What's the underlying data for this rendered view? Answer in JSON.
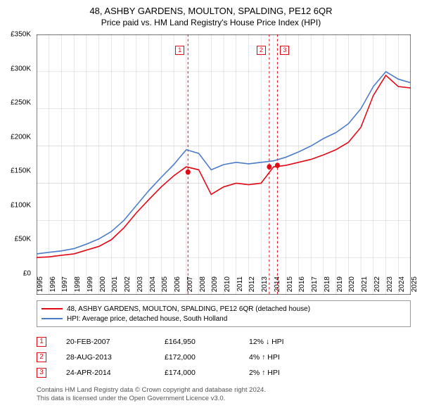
{
  "title": {
    "main": "48, ASHBY GARDENS, MOULTON, SPALDING, PE12 6QR",
    "sub": "Price paid vs. HM Land Registry's House Price Index (HPI)"
  },
  "chart": {
    "type": "line",
    "background_color": "#ffffff",
    "grid_color": "#cccccc",
    "axis_color": "#000000",
    "ylim": [
      0,
      350000
    ],
    "ytick_step": 50000,
    "ytick_labels": [
      "£0",
      "£50K",
      "£100K",
      "£150K",
      "£200K",
      "£250K",
      "£300K",
      "£350K"
    ],
    "x_years": [
      1995,
      1996,
      1997,
      1998,
      1999,
      2000,
      2001,
      2002,
      2003,
      2004,
      2005,
      2006,
      2007,
      2008,
      2009,
      2010,
      2011,
      2012,
      2013,
      2014,
      2015,
      2016,
      2017,
      2018,
      2019,
      2020,
      2021,
      2022,
      2023,
      2024,
      2025
    ],
    "series": [
      {
        "name": "property",
        "color": "#e30613",
        "width": 1.5,
        "values": [
          50,
          51,
          53,
          55,
          60,
          65,
          74,
          90,
          110,
          128,
          145,
          160,
          172,
          168,
          135,
          145,
          150,
          148,
          150,
          172,
          174,
          178,
          182,
          188,
          195,
          205,
          225,
          268,
          295,
          280,
          278
        ],
        "marker_points": [
          {
            "year": 2007.14,
            "value": 164.95,
            "index": 1
          },
          {
            "year": 2013.66,
            "value": 172.0,
            "index": 2
          },
          {
            "year": 2014.31,
            "value": 174.0,
            "index": 3
          }
        ]
      },
      {
        "name": "hpi",
        "color": "#4a7bc8",
        "width": 1.5,
        "values": [
          55,
          57,
          59,
          62,
          68,
          75,
          85,
          100,
          120,
          140,
          158,
          175,
          195,
          190,
          168,
          175,
          178,
          176,
          178,
          180,
          185,
          192,
          200,
          210,
          218,
          230,
          250,
          280,
          300,
          290,
          285
        ]
      }
    ],
    "event_lines": [
      {
        "year": 2007.14,
        "label": "1",
        "label_x_offset": -18
      },
      {
        "year": 2013.66,
        "label": "2",
        "label_x_offset": -18
      },
      {
        "year": 2014.31,
        "label": "3",
        "label_x_offset": 4
      }
    ],
    "event_line_color": "#e30613",
    "event_line_dash": "3,3"
  },
  "legend": {
    "items": [
      {
        "color": "#e30613",
        "label": "48, ASHBY GARDENS, MOULTON, SPALDING, PE12 6QR (detached house)"
      },
      {
        "color": "#4a7bc8",
        "label": "HPI: Average price, detached house, South Holland"
      }
    ]
  },
  "markers": [
    {
      "num": "1",
      "date": "20-FEB-2007",
      "price": "£164,950",
      "pct": "12% ↓ HPI"
    },
    {
      "num": "2",
      "date": "28-AUG-2013",
      "price": "£172,000",
      "pct": "4% ↑ HPI"
    },
    {
      "num": "3",
      "date": "24-APR-2014",
      "price": "£174,000",
      "pct": "2% ↑ HPI"
    }
  ],
  "attribution": {
    "line1": "Contains HM Land Registry data © Crown copyright and database right 2024.",
    "line2": "This data is licensed under the Open Government Licence v3.0."
  }
}
